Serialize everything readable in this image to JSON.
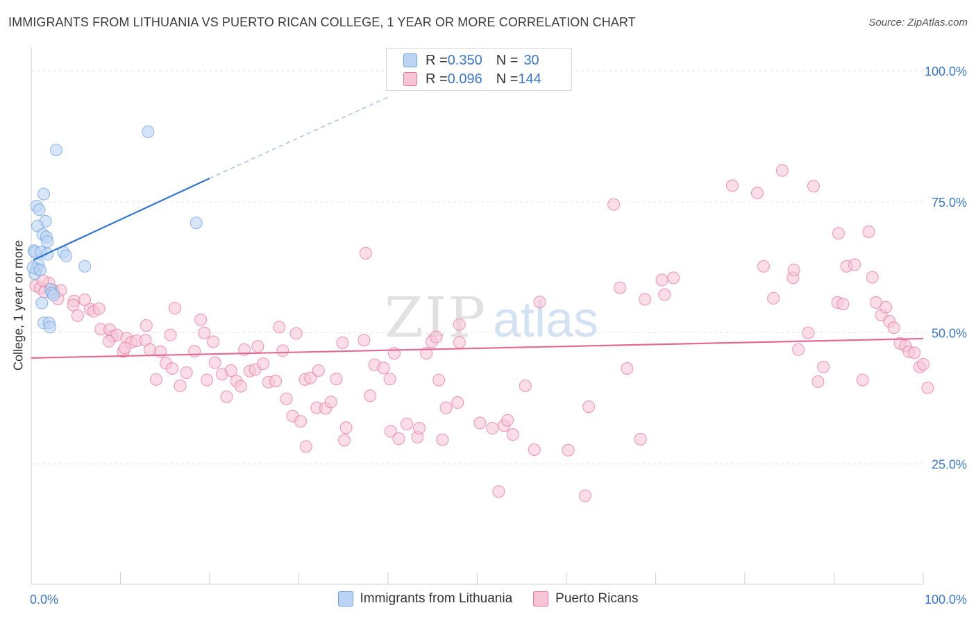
{
  "title": "IMMIGRANTS FROM LITHUANIA VS PUERTO RICAN COLLEGE, 1 YEAR OR MORE CORRELATION CHART",
  "source": "Source: ZipAtlas.com",
  "watermark": {
    "zip": "ZIP",
    "atlas": "atlas"
  },
  "legend_top": {
    "rows": [
      {
        "r_label": "R = ",
        "r_value": "0.350",
        "n_label": "N = ",
        "n_value": "30"
      },
      {
        "r_label": "R = ",
        "r_value": "0.096",
        "n_label": "N = ",
        "n_value": "144"
      }
    ]
  },
  "chart_data": {
    "type": "scatter",
    "title": "IMMIGRANTS FROM LITHUANIA VS PUERTO RICAN COLLEGE, 1 YEAR OR MORE CORRELATION CHART",
    "xlabel": "",
    "ylabel": "College, 1 year or more",
    "xlim": [
      0,
      100
    ],
    "ylim": [
      2,
      104
    ],
    "x_tick_labels": [
      "0.0%",
      "100.0%"
    ],
    "y_ticks": [
      25,
      50,
      75,
      100
    ],
    "y_tick_labels": [
      "25.0%",
      "50.0%",
      "75.0%",
      "100.0%"
    ],
    "grid": true,
    "legend_position": "bottom",
    "series": [
      {
        "name": "Immigrants from Lithuania",
        "color": "#6a9fe0",
        "fill": "#bcd4f3",
        "trend": {
          "x0": 0.2,
          "y0": 63.9,
          "x1": 20,
          "y1": 79.5,
          "dash_to_x": 40,
          "dash_to_y": 95
        },
        "points": [
          [
            2.8,
            84.9
          ],
          [
            13.1,
            88.4
          ],
          [
            18.5,
            71.0
          ],
          [
            1.4,
            76.5
          ],
          [
            0.6,
            74.2
          ],
          [
            0.9,
            73.5
          ],
          [
            1.6,
            71.3
          ],
          [
            0.7,
            70.4
          ],
          [
            1.3,
            68.8
          ],
          [
            1.7,
            68.3
          ],
          [
            1.8,
            67.4
          ],
          [
            0.3,
            65.7
          ],
          [
            0.4,
            65.4
          ],
          [
            1.1,
            65.4
          ],
          [
            1.8,
            65.0
          ],
          [
            3.6,
            65.4
          ],
          [
            3.9,
            64.7
          ],
          [
            6.0,
            62.7
          ],
          [
            0.8,
            63.0
          ],
          [
            0.6,
            62.2
          ],
          [
            0.4,
            61.3
          ],
          [
            2.2,
            58.3
          ],
          [
            2.3,
            57.6
          ],
          [
            2.5,
            57.2
          ],
          [
            1.2,
            55.7
          ],
          [
            1.4,
            51.9
          ],
          [
            2.0,
            51.9
          ],
          [
            2.1,
            51.1
          ],
          [
            0.2,
            62.5
          ],
          [
            1.0,
            62.0
          ]
        ]
      },
      {
        "name": "Puerto Ricans",
        "color": "#e8739a",
        "fill": "#f6c6d5",
        "trend": {
          "x0": 0,
          "y0": 45.2,
          "x1": 100,
          "y1": 48.9
        },
        "points": [
          [
            0.5,
            59.0
          ],
          [
            1.0,
            58.5
          ],
          [
            1.5,
            57.8
          ],
          [
            2.0,
            59.5
          ],
          [
            1.3,
            60.0
          ],
          [
            2.5,
            58.0
          ],
          [
            3.3,
            58.1
          ],
          [
            3.0,
            56.5
          ],
          [
            4.8,
            56.1
          ],
          [
            6.0,
            56.3
          ],
          [
            4.7,
            55.3
          ],
          [
            6.6,
            54.5
          ],
          [
            7.0,
            54.1
          ],
          [
            7.6,
            54.6
          ],
          [
            5.2,
            53.3
          ],
          [
            7.8,
            50.7
          ],
          [
            8.8,
            50.6
          ],
          [
            9.1,
            49.3
          ],
          [
            9.6,
            49.6
          ],
          [
            10.7,
            49.0
          ],
          [
            11.2,
            48.2
          ],
          [
            11.8,
            48.5
          ],
          [
            8.7,
            48.4
          ],
          [
            10.3,
            46.4
          ],
          [
            10.5,
            47.1
          ],
          [
            12.9,
            51.4
          ],
          [
            12.8,
            48.6
          ],
          [
            13.3,
            46.8
          ],
          [
            14.5,
            46.4
          ],
          [
            15.1,
            44.2
          ],
          [
            15.8,
            43.2
          ],
          [
            14.0,
            41.1
          ],
          [
            15.6,
            49.6
          ],
          [
            16.1,
            54.7
          ],
          [
            17.4,
            42.4
          ],
          [
            16.7,
            39.9
          ],
          [
            18.3,
            46.5
          ],
          [
            19.0,
            52.5
          ],
          [
            19.4,
            50.0
          ],
          [
            20.4,
            48.3
          ],
          [
            19.7,
            41.0
          ],
          [
            20.6,
            44.3
          ],
          [
            21.4,
            42.1
          ],
          [
            22.4,
            42.8
          ],
          [
            21.9,
            37.8
          ],
          [
            23.0,
            40.8
          ],
          [
            23.5,
            39.8
          ],
          [
            23.9,
            46.8
          ],
          [
            24.5,
            42.7
          ],
          [
            25.4,
            47.4
          ],
          [
            25.1,
            43.0
          ],
          [
            26.0,
            44.1
          ],
          [
            26.6,
            40.6
          ],
          [
            27.4,
            40.8
          ],
          [
            27.8,
            51.1
          ],
          [
            28.2,
            46.6
          ],
          [
            28.6,
            37.4
          ],
          [
            29.3,
            34.1
          ],
          [
            30.2,
            33.1
          ],
          [
            30.7,
            41.1
          ],
          [
            31.3,
            41.4
          ],
          [
            30.8,
            28.3
          ],
          [
            32.0,
            35.7
          ],
          [
            32.2,
            42.8
          ],
          [
            33.0,
            35.6
          ],
          [
            33.6,
            36.8
          ],
          [
            34.2,
            41.2
          ],
          [
            29.7,
            49.9
          ],
          [
            34.9,
            48.1
          ],
          [
            35.3,
            31.9
          ],
          [
            35.1,
            29.5
          ],
          [
            37.3,
            48.6
          ],
          [
            37.5,
            65.2
          ],
          [
            38.0,
            38.0
          ],
          [
            38.5,
            43.9
          ],
          [
            39.5,
            43.3
          ],
          [
            40.2,
            41.2
          ],
          [
            40.7,
            46.1
          ],
          [
            40.3,
            31.2
          ],
          [
            41.2,
            29.8
          ],
          [
            42.1,
            32.6
          ],
          [
            43.3,
            30.1
          ],
          [
            43.5,
            31.8
          ],
          [
            44.3,
            46.1
          ],
          [
            44.9,
            48.3
          ],
          [
            45.4,
            49.2
          ],
          [
            45.7,
            41.0
          ],
          [
            46.1,
            29.6
          ],
          [
            46.5,
            35.7
          ],
          [
            47.8,
            36.7
          ],
          [
            48.0,
            51.6
          ],
          [
            50.3,
            32.8
          ],
          [
            51.7,
            31.8
          ],
          [
            52.4,
            19.7
          ],
          [
            53.0,
            32.3
          ],
          [
            53.4,
            33.3
          ],
          [
            54.0,
            30.6
          ],
          [
            55.4,
            39.9
          ],
          [
            56.4,
            27.7
          ],
          [
            57.0,
            55.9
          ],
          [
            60.2,
            27.6
          ],
          [
            62.1,
            18.9
          ],
          [
            62.5,
            35.9
          ],
          [
            65.3,
            74.5
          ],
          [
            66.0,
            58.6
          ],
          [
            66.8,
            43.2
          ],
          [
            68.3,
            29.7
          ],
          [
            68.8,
            56.4
          ],
          [
            70.7,
            60.1
          ],
          [
            72.0,
            60.5
          ],
          [
            71.0,
            57.3
          ],
          [
            48.0,
            48.2
          ],
          [
            78.6,
            78.1
          ],
          [
            81.4,
            76.7
          ],
          [
            82.1,
            62.7
          ],
          [
            83.2,
            56.6
          ],
          [
            84.2,
            81.0
          ],
          [
            85.4,
            60.5
          ],
          [
            85.5,
            62.0
          ],
          [
            86.0,
            46.8
          ],
          [
            87.1,
            50.0
          ],
          [
            87.7,
            78.0
          ],
          [
            88.2,
            40.7
          ],
          [
            88.8,
            43.5
          ],
          [
            90.4,
            55.8
          ],
          [
            90.5,
            69.0
          ],
          [
            91.0,
            55.5
          ],
          [
            91.4,
            62.7
          ],
          [
            92.3,
            63.0
          ],
          [
            93.2,
            41.0
          ],
          [
            93.9,
            69.3
          ],
          [
            94.3,
            60.6
          ],
          [
            94.7,
            55.8
          ],
          [
            95.3,
            53.4
          ],
          [
            95.8,
            54.9
          ],
          [
            96.2,
            52.2
          ],
          [
            96.7,
            51.0
          ],
          [
            97.4,
            48.0
          ],
          [
            98.0,
            47.5
          ],
          [
            98.4,
            46.4
          ],
          [
            99.0,
            46.2
          ],
          [
            99.6,
            43.5
          ],
          [
            100.0,
            44.0
          ],
          [
            100.5,
            39.5
          ]
        ]
      }
    ]
  }
}
